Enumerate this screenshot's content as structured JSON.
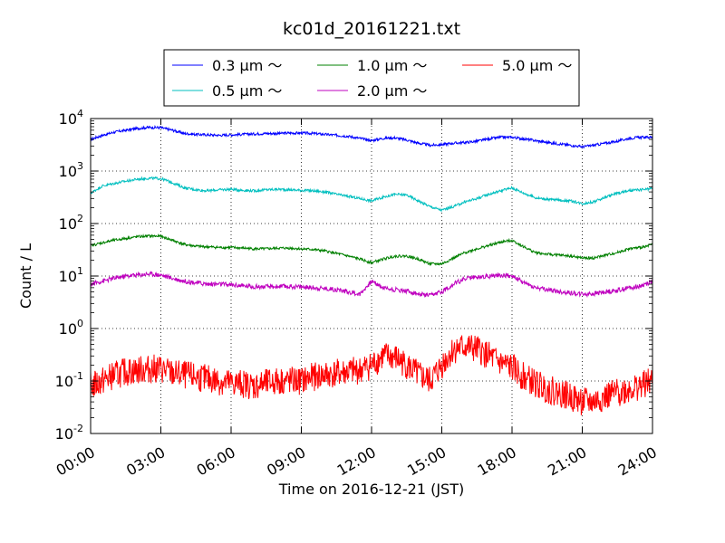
{
  "chart_data": {
    "type": "line",
    "title": "kc01d_20161221.txt",
    "xlabel": "Time on 2016-12-21 (JST)",
    "ylabel": "Count / L",
    "yscale": "log",
    "xlim": [
      0,
      24
    ],
    "ylim": [
      0.01,
      10000
    ],
    "grid": true,
    "legend_position": "top-center",
    "x_ticks": [
      {
        "value": 0,
        "label": "00:00"
      },
      {
        "value": 3,
        "label": "03:00"
      },
      {
        "value": 6,
        "label": "06:00"
      },
      {
        "value": 9,
        "label": "09:00"
      },
      {
        "value": 12,
        "label": "12:00"
      },
      {
        "value": 15,
        "label": "15:00"
      },
      {
        "value": 18,
        "label": "18:00"
      },
      {
        "value": 21,
        "label": "21:00"
      },
      {
        "value": 24,
        "label": "24:00"
      }
    ],
    "y_ticks": [
      {
        "value": 0.01,
        "base": "10",
        "exp": "-2"
      },
      {
        "value": 0.1,
        "base": "10",
        "exp": "-1"
      },
      {
        "value": 1,
        "base": "10",
        "exp": "0"
      },
      {
        "value": 10,
        "base": "10",
        "exp": "1"
      },
      {
        "value": 100,
        "base": "10",
        "exp": "2"
      },
      {
        "value": 1000,
        "base": "10",
        "exp": "3"
      },
      {
        "value": 10000,
        "base": "10",
        "exp": "4"
      }
    ],
    "x": [
      0,
      0.5,
      1,
      1.5,
      2,
      2.5,
      3,
      3.5,
      4,
      4.5,
      5,
      5.5,
      6,
      6.5,
      7,
      7.5,
      8,
      8.5,
      9,
      9.5,
      10,
      10.5,
      11,
      11.5,
      12,
      12.5,
      13,
      13.5,
      14,
      14.5,
      15,
      15.5,
      16,
      16.5,
      17,
      17.5,
      18,
      18.5,
      19,
      19.5,
      20,
      20.5,
      21,
      21.5,
      22,
      22.5,
      23,
      23.5,
      24
    ],
    "series": [
      {
        "name": "0.3 μm ～",
        "color": "#0000ff",
        "values": [
          4000,
          4800,
          5500,
          6000,
          6500,
          6800,
          6700,
          6000,
          5200,
          5000,
          4900,
          4800,
          4900,
          5000,
          5100,
          5200,
          5200,
          5300,
          5300,
          5200,
          5000,
          4800,
          4600,
          4200,
          3800,
          4200,
          4300,
          3900,
          3400,
          3100,
          3200,
          3400,
          3500,
          3700,
          4100,
          4400,
          4400,
          4100,
          3800,
          3500,
          3300,
          3100,
          2900,
          3100,
          3400,
          3700,
          4200,
          4400,
          4400
        ]
      },
      {
        "name": "0.5 μm ～",
        "color": "#00bfbf",
        "values": [
          380,
          520,
          580,
          640,
          700,
          730,
          720,
          600,
          480,
          440,
          420,
          440,
          450,
          430,
          420,
          440,
          450,
          440,
          430,
          420,
          400,
          360,
          330,
          300,
          270,
          320,
          360,
          350,
          270,
          210,
          180,
          210,
          260,
          300,
          360,
          420,
          480,
          380,
          310,
          290,
          280,
          270,
          240,
          260,
          320,
          380,
          420,
          440,
          460
        ]
      },
      {
        "name": "1.0 μm ～",
        "color": "#008000",
        "values": [
          38,
          43,
          48,
          52,
          56,
          58,
          57,
          48,
          40,
          37,
          36,
          35,
          35,
          34,
          33,
          33,
          34,
          34,
          33,
          32,
          30,
          27,
          24,
          21,
          18,
          21,
          24,
          24,
          21,
          17,
          17,
          22,
          28,
          33,
          38,
          44,
          48,
          36,
          28,
          26,
          25,
          24,
          22,
          22,
          25,
          28,
          33,
          35,
          40
        ]
      },
      {
        "name": "2.0 μm ～",
        "color": "#bf00bf",
        "values": [
          7,
          8,
          9,
          10,
          10.5,
          11,
          10.5,
          9,
          8,
          7.5,
          7,
          7,
          6.8,
          6.5,
          6.3,
          6.2,
          6.3,
          6.3,
          6.2,
          6,
          5.8,
          5.5,
          5,
          4.5,
          8,
          6,
          5.5,
          5.2,
          4.5,
          4.2,
          5,
          7,
          9,
          9.5,
          10,
          10.5,
          10,
          7.5,
          6,
          5.5,
          5,
          4.8,
          4.5,
          4.6,
          5,
          5.3,
          6,
          6.5,
          8
        ]
      },
      {
        "name": "5.0 μm ～",
        "color": "#ff0000",
        "values": [
          0.08,
          0.1,
          0.13,
          0.15,
          0.16,
          0.17,
          0.17,
          0.14,
          0.13,
          0.12,
          0.11,
          0.1,
          0.09,
          0.09,
          0.08,
          0.09,
          0.1,
          0.1,
          0.1,
          0.12,
          0.13,
          0.14,
          0.15,
          0.16,
          0.2,
          0.3,
          0.28,
          0.2,
          0.13,
          0.1,
          0.2,
          0.4,
          0.45,
          0.4,
          0.3,
          0.22,
          0.18,
          0.12,
          0.09,
          0.07,
          0.06,
          0.05,
          0.04,
          0.04,
          0.05,
          0.06,
          0.07,
          0.08,
          0.1
        ]
      }
    ]
  }
}
